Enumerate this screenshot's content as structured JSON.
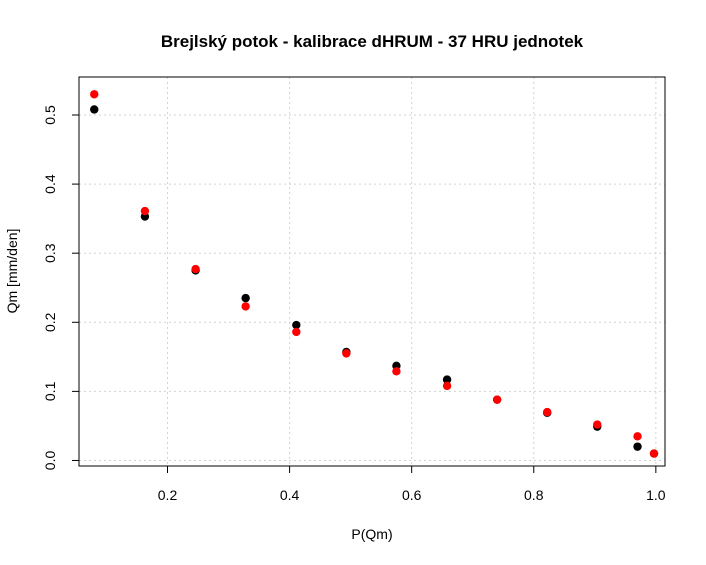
{
  "chart_data": {
    "type": "scatter",
    "title": "Brejlský potok - kalibrace dHRUM - 37 HRU jednotek",
    "xlabel": "P(Qm)",
    "ylabel": "Qm [mm/den]",
    "xlim": [
      0.055,
      1.015
    ],
    "ylim": [
      -0.008,
      0.555
    ],
    "xticks": [
      0.2,
      0.4,
      0.6,
      0.8,
      1.0
    ],
    "xtick_labels": [
      "0.2",
      "0.4",
      "0.6",
      "0.8",
      "1.0"
    ],
    "yticks": [
      0.0,
      0.1,
      0.2,
      0.3,
      0.4,
      0.5
    ],
    "ytick_labels": [
      "0.0",
      "0.1",
      "0.2",
      "0.3",
      "0.4",
      "0.5"
    ],
    "grid": true,
    "series": [
      {
        "color": "#000000",
        "x": [
          0.08,
          0.163,
          0.246,
          0.328,
          0.411,
          0.493,
          0.575,
          0.658,
          0.74,
          0.822,
          0.904,
          0.97,
          0.997
        ],
        "y": [
          0.508,
          0.353,
          0.275,
          0.235,
          0.196,
          0.157,
          0.137,
          0.117,
          0.088,
          0.069,
          0.049,
          0.02,
          0.01
        ]
      },
      {
        "color": "#ff0000",
        "x": [
          0.08,
          0.163,
          0.246,
          0.328,
          0.411,
          0.493,
          0.575,
          0.658,
          0.74,
          0.822,
          0.904,
          0.97,
          0.997
        ],
        "y": [
          0.53,
          0.361,
          0.277,
          0.223,
          0.186,
          0.155,
          0.129,
          0.108,
          0.088,
          0.07,
          0.052,
          0.035,
          0.01
        ]
      }
    ]
  }
}
